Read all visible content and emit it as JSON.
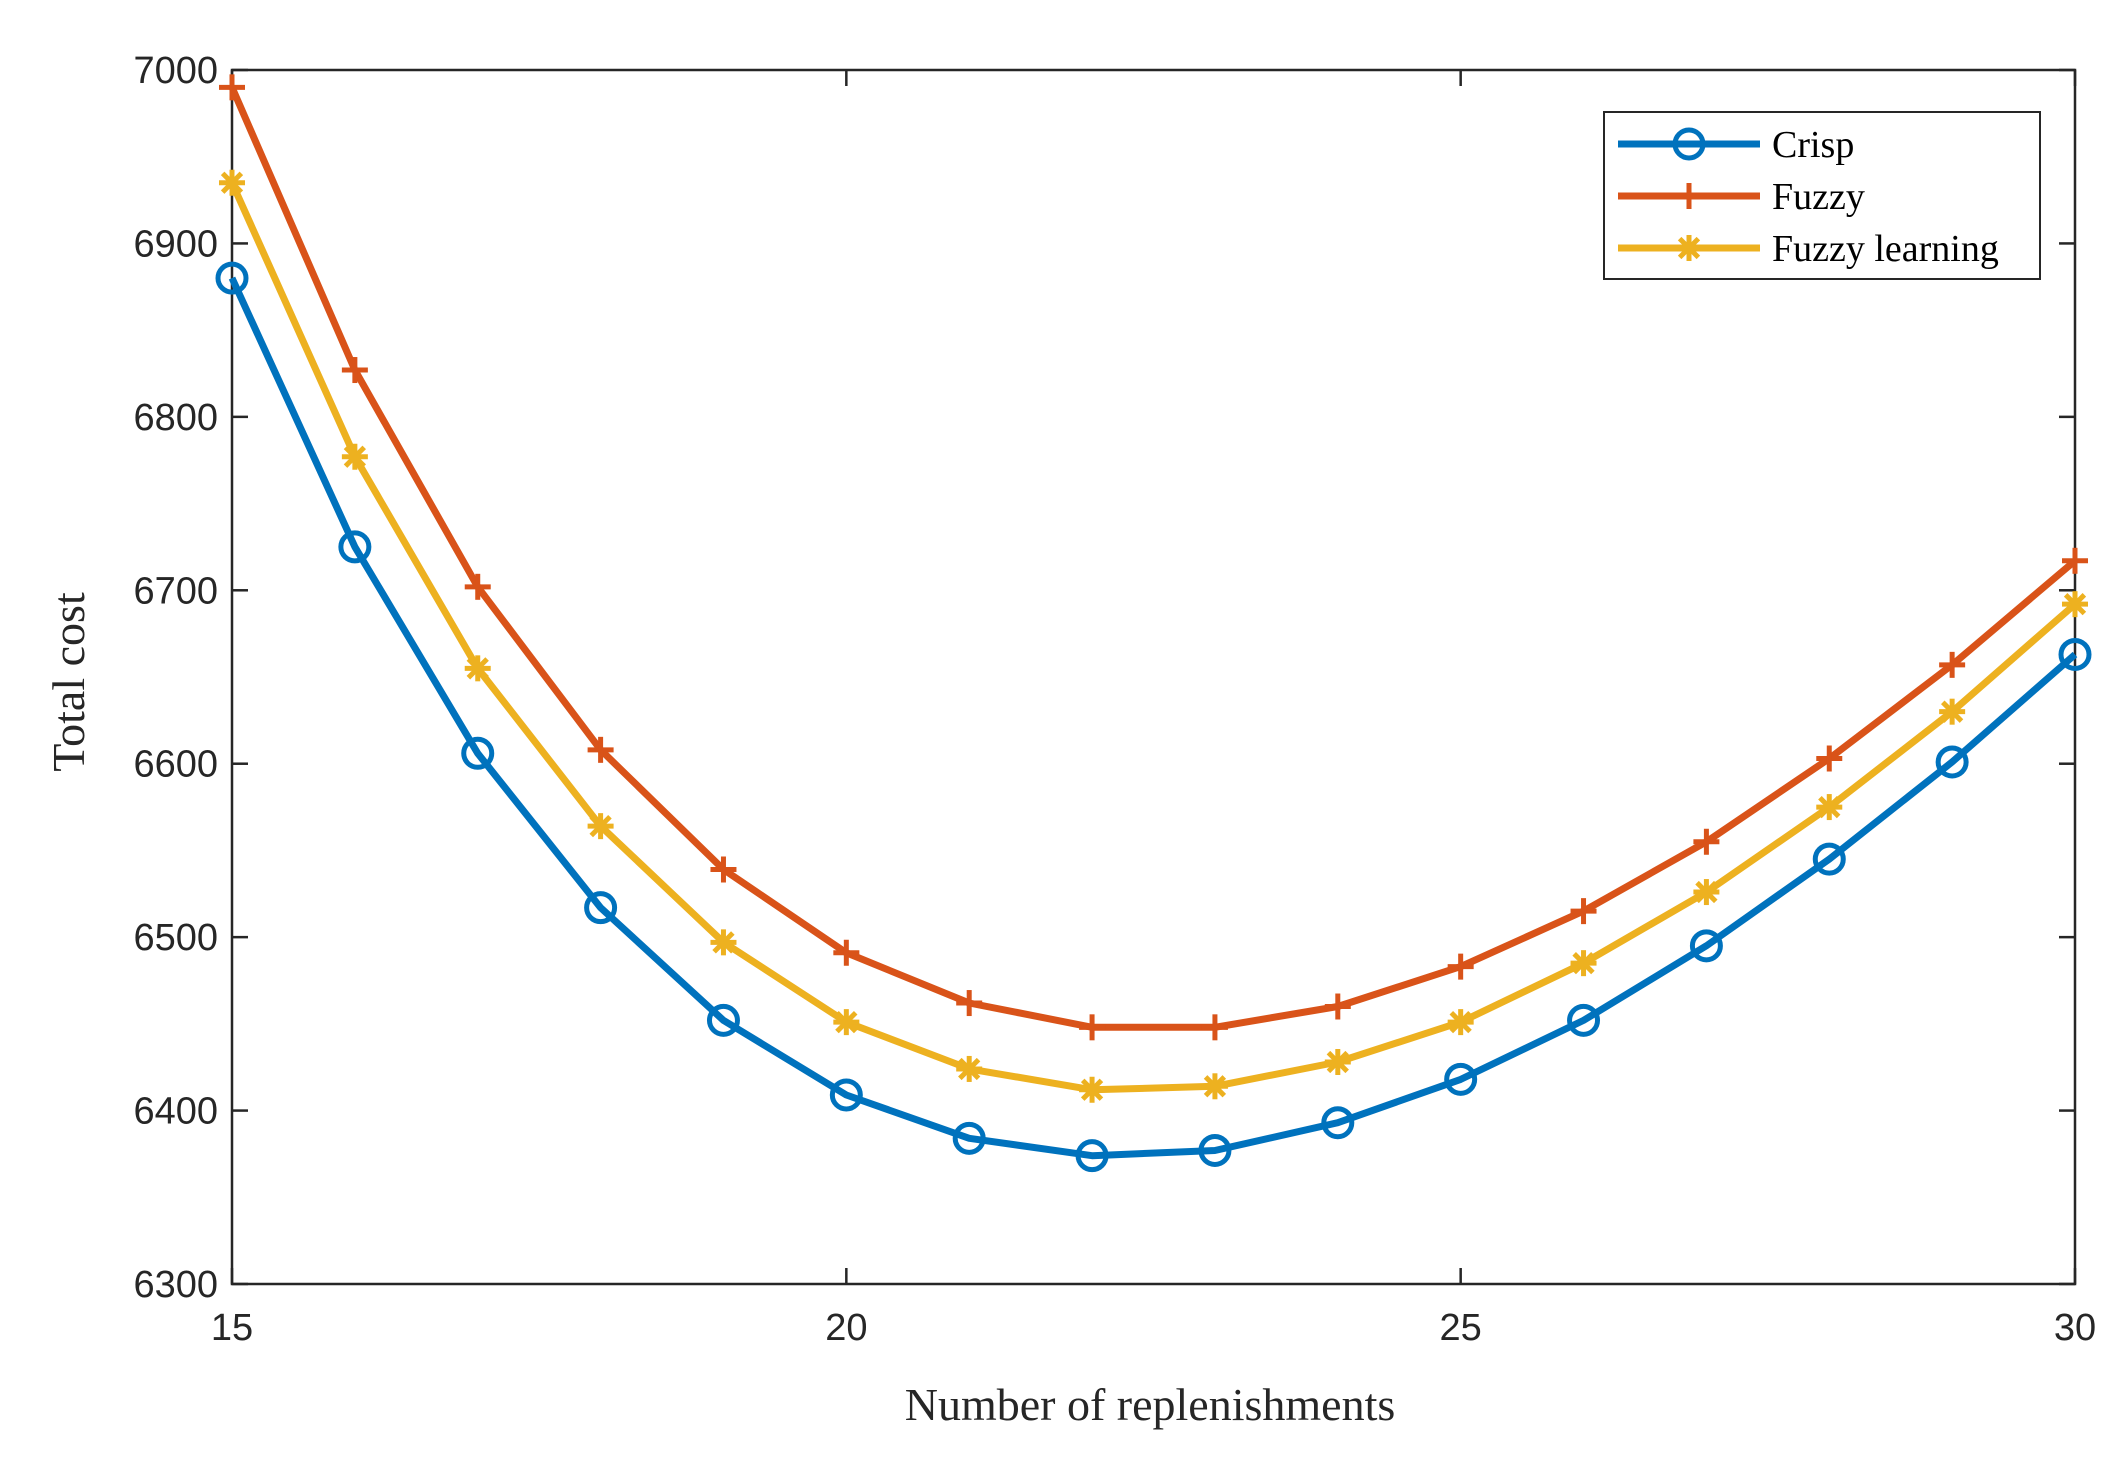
{
  "chart_data": {
    "type": "line",
    "title": "",
    "xlabel": "Number of replenishments",
    "ylabel": "Total cost",
    "xlim": [
      15,
      30
    ],
    "ylim": [
      6300,
      7000
    ],
    "xticks": [
      15,
      20,
      25,
      30
    ],
    "yticks": [
      6300,
      6400,
      6500,
      6600,
      6700,
      6800,
      6900,
      7000
    ],
    "grid": false,
    "legend_position": "top-right",
    "x": [
      15,
      16,
      17,
      18,
      19,
      20,
      21,
      22,
      23,
      24,
      25,
      26,
      27,
      28,
      29,
      30
    ],
    "series": [
      {
        "name": "Crisp",
        "color": "#0072BD",
        "marker": "circle",
        "values": [
          6880,
          6725,
          6606,
          6517,
          6452,
          6409,
          6384,
          6374,
          6377,
          6393,
          6418,
          6452,
          6495,
          6545,
          6601,
          6663
        ]
      },
      {
        "name": "Fuzzy",
        "color": "#D95319",
        "marker": "plus",
        "values": [
          6990,
          6827,
          6702,
          6608,
          6539,
          6491,
          6462,
          6448,
          6448,
          6460,
          6483,
          6515,
          6555,
          6603,
          6657,
          6717
        ]
      },
      {
        "name": "Fuzzy learning",
        "color": "#EDB120",
        "marker": "asterisk",
        "values": [
          6935,
          6777,
          6655,
          6564,
          6497,
          6451,
          6424,
          6412,
          6414,
          6428,
          6451,
          6485,
          6526,
          6575,
          6630,
          6692
        ]
      }
    ]
  }
}
